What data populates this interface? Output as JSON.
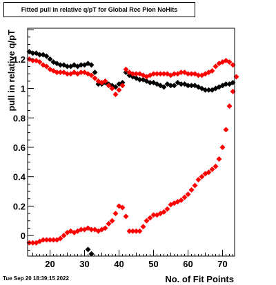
{
  "header": {
    "title": "Fitted pull in relative q/pT for Global Rec Pion NoHits"
  },
  "footer": {
    "timestamp": "Tue Sep 20 18:39:15 2022"
  },
  "colors": {
    "series_black": "#000000",
    "series_red": "#ff0000",
    "frame": "#000000"
  },
  "chart_data": {
    "type": "scatter",
    "title": "Fitted pull in relative q/pT for Global Rec Pion NoHits",
    "xlabel": "No. of Fit Points",
    "ylabel": "pull in relative q/pT",
    "xlim": [
      13.5,
      73.5
    ],
    "ylim": [
      -0.14,
      1.41
    ],
    "x_ticks": [
      20,
      30,
      40,
      50,
      60,
      70
    ],
    "y_ticks": [
      0,
      0.2,
      0.4,
      0.6,
      0.8,
      1,
      1.2
    ],
    "x_tick_labels": [
      "20",
      "30",
      "40",
      "50",
      "60",
      "70"
    ],
    "y_tick_labels": [
      "0",
      "0.2",
      "0.4",
      "0.6",
      "0.8",
      "1",
      "1.2"
    ],
    "grid": false,
    "legend": "none",
    "series": [
      {
        "color": "#000000",
        "points": [
          [
            14,
            1.25
          ],
          [
            15,
            1.24
          ],
          [
            16,
            1.24
          ],
          [
            17,
            1.23
          ],
          [
            18,
            1.23
          ],
          [
            19,
            1.22
          ],
          [
            20,
            1.2
          ],
          [
            21,
            1.18
          ],
          [
            22,
            1.17
          ],
          [
            23,
            1.16
          ],
          [
            24,
            1.16
          ],
          [
            25,
            1.15
          ],
          [
            26,
            1.15
          ],
          [
            27,
            1.16
          ],
          [
            28,
            1.15
          ],
          [
            29,
            1.16
          ],
          [
            30,
            1.16
          ],
          [
            31,
            1.17
          ],
          [
            32,
            1.16
          ],
          [
            33,
            1.11
          ],
          [
            34,
            1.03
          ],
          [
            35,
            1.03
          ],
          [
            36,
            1.04
          ],
          [
            37,
            1.03
          ],
          [
            38,
            1.02
          ],
          [
            39,
            1.01
          ],
          [
            40,
            1.03
          ],
          [
            41,
            1.04
          ],
          [
            42,
            1.11
          ],
          [
            43,
            1.09
          ],
          [
            44,
            1.08
          ],
          [
            45,
            1.07
          ],
          [
            46,
            1.06
          ],
          [
            47,
            1.06
          ],
          [
            48,
            1.05
          ],
          [
            49,
            1.04
          ],
          [
            50,
            1.04
          ],
          [
            51,
            1.03
          ],
          [
            52,
            1.02
          ],
          [
            53,
            1.01
          ],
          [
            54,
            1.03
          ],
          [
            55,
            1.02
          ],
          [
            56,
            1.02
          ],
          [
            57,
            1.04
          ],
          [
            58,
            1.03
          ],
          [
            59,
            1.03
          ],
          [
            60,
            1.02
          ],
          [
            61,
            1.02
          ],
          [
            62,
            1.02
          ],
          [
            63,
            1.01
          ],
          [
            64,
            1.0
          ],
          [
            65,
            0.99
          ],
          [
            66,
            0.99
          ],
          [
            67,
            0.99
          ],
          [
            68,
            1.0
          ],
          [
            69,
            1.01
          ],
          [
            70,
            1.02
          ],
          [
            71,
            1.03
          ],
          [
            72,
            1.03
          ],
          [
            73,
            1.04
          ],
          [
            31,
            -0.095
          ],
          [
            32,
            -0.125
          ]
        ]
      },
      {
        "color": "#ff0000",
        "points": [
          [
            14,
            1.2
          ],
          [
            15,
            1.19
          ],
          [
            16,
            1.19
          ],
          [
            17,
            1.18
          ],
          [
            18,
            1.16
          ],
          [
            19,
            1.15
          ],
          [
            20,
            1.13
          ],
          [
            21,
            1.12
          ],
          [
            22,
            1.11
          ],
          [
            23,
            1.11
          ],
          [
            24,
            1.11
          ],
          [
            25,
            1.1
          ],
          [
            26,
            1.1
          ],
          [
            27,
            1.11
          ],
          [
            28,
            1.1
          ],
          [
            29,
            1.11
          ],
          [
            30,
            1.11
          ],
          [
            31,
            1.1
          ],
          [
            32,
            1.09
          ],
          [
            33,
            1.07
          ],
          [
            34,
            1.05
          ],
          [
            35,
            1.04
          ],
          [
            36,
            1.05
          ],
          [
            37,
            1.02
          ],
          [
            38,
            1.0
          ],
          [
            39,
            0.96
          ],
          [
            40,
            0.99
          ],
          [
            41,
            1.02
          ],
          [
            42,
            1.13
          ],
          [
            43,
            1.11
          ],
          [
            44,
            1.1
          ],
          [
            45,
            1.1
          ],
          [
            46,
            1.1
          ],
          [
            47,
            1.09
          ],
          [
            48,
            1.08
          ],
          [
            49,
            1.09
          ],
          [
            50,
            1.1
          ],
          [
            51,
            1.1
          ],
          [
            52,
            1.1
          ],
          [
            53,
            1.1
          ],
          [
            54,
            1.1
          ],
          [
            55,
            1.09
          ],
          [
            56,
            1.1
          ],
          [
            57,
            1.1
          ],
          [
            58,
            1.11
          ],
          [
            59,
            1.11
          ],
          [
            60,
            1.1
          ],
          [
            61,
            1.1
          ],
          [
            62,
            1.1
          ],
          [
            63,
            1.09
          ],
          [
            64,
            1.09
          ],
          [
            65,
            1.1
          ],
          [
            66,
            1.11
          ],
          [
            67,
            1.12
          ],
          [
            68,
            1.15
          ],
          [
            69,
            1.17
          ],
          [
            70,
            1.18
          ],
          [
            71,
            1.19
          ],
          [
            72,
            1.18
          ],
          [
            73,
            1.16
          ],
          [
            14,
            -0.05
          ],
          [
            15,
            -0.05
          ],
          [
            16,
            -0.05
          ],
          [
            17,
            -0.04
          ],
          [
            18,
            -0.03
          ],
          [
            19,
            -0.03
          ],
          [
            20,
            -0.03
          ],
          [
            21,
            -0.03
          ],
          [
            22,
            -0.03
          ],
          [
            23,
            -0.02
          ],
          [
            24,
            0.0
          ],
          [
            25,
            0.02
          ],
          [
            26,
            0.03
          ],
          [
            27,
            0.02
          ],
          [
            28,
            0.03
          ],
          [
            29,
            0.04
          ],
          [
            30,
            0.04
          ],
          [
            31,
            0.05
          ],
          [
            32,
            0.04
          ],
          [
            33,
            0.04
          ],
          [
            34,
            0.03
          ],
          [
            35,
            0.04
          ],
          [
            36,
            0.05
          ],
          [
            37,
            0.08
          ],
          [
            38,
            0.1
          ],
          [
            39,
            0.15
          ],
          [
            40,
            0.2
          ],
          [
            41,
            0.19
          ],
          [
            42,
            0.13
          ],
          [
            43,
            0.03
          ],
          [
            44,
            0.03
          ],
          [
            45,
            0.03
          ],
          [
            46,
            0.03
          ],
          [
            47,
            0.06
          ],
          [
            48,
            0.1
          ],
          [
            49,
            0.12
          ],
          [
            50,
            0.14
          ],
          [
            51,
            0.14
          ],
          [
            52,
            0.15
          ],
          [
            53,
            0.16
          ],
          [
            54,
            0.18
          ],
          [
            55,
            0.21
          ],
          [
            56,
            0.22
          ],
          [
            57,
            0.23
          ],
          [
            58,
            0.24
          ],
          [
            59,
            0.26
          ],
          [
            60,
            0.28
          ],
          [
            61,
            0.31
          ],
          [
            62,
            0.34
          ],
          [
            63,
            0.38
          ],
          [
            64,
            0.4
          ],
          [
            65,
            0.42
          ],
          [
            66,
            0.43
          ],
          [
            67,
            0.45
          ],
          [
            68,
            0.47
          ],
          [
            69,
            0.52
          ],
          [
            70,
            0.6
          ],
          [
            71,
            0.72
          ],
          [
            72,
            0.88
          ],
          [
            73,
            0.98
          ],
          [
            74,
            1.08
          ]
        ]
      }
    ]
  }
}
